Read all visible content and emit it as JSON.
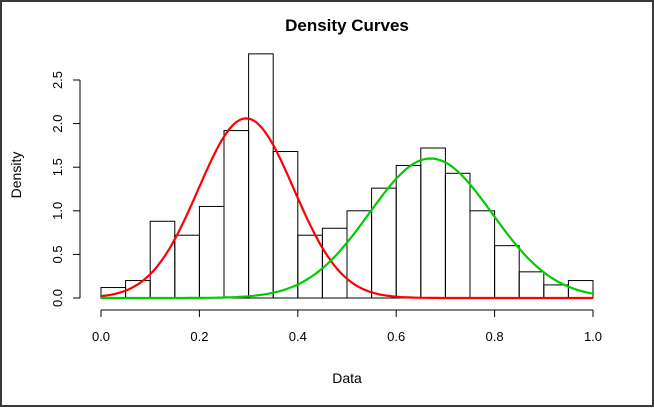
{
  "chart_data": {
    "type": "bar",
    "title": "Density Curves",
    "xlabel": "Data",
    "ylabel": "Density",
    "xlim": [
      0.0,
      1.0
    ],
    "ylim": [
      0.0,
      2.8
    ],
    "x_ticks": [
      "0.0",
      "0.2",
      "0.4",
      "0.6",
      "0.8",
      "1.0"
    ],
    "y_ticks": [
      "0.0",
      "0.5",
      "1.0",
      "1.5",
      "2.0",
      "2.5"
    ],
    "grid": false,
    "histogram": {
      "bin_width": 0.05,
      "bin_starts": [
        0.0,
        0.05,
        0.1,
        0.15,
        0.2,
        0.25,
        0.3,
        0.35,
        0.4,
        0.45,
        0.5,
        0.55,
        0.6,
        0.65,
        0.7,
        0.75,
        0.8,
        0.85,
        0.9,
        0.95
      ],
      "values": [
        0.12,
        0.2,
        0.88,
        0.72,
        1.05,
        1.92,
        2.8,
        1.68,
        0.72,
        0.8,
        1.0,
        1.26,
        1.52,
        1.72,
        1.43,
        1.0,
        0.6,
        0.3,
        0.15,
        0.2
      ]
    },
    "series": [
      {
        "type": "density",
        "color": "#ff0000",
        "mean": 0.295,
        "sd": 0.097,
        "x_range": [
          0.0,
          1.0
        ],
        "peak": 2.06
      },
      {
        "type": "density",
        "color": "#00cc00",
        "mean": 0.67,
        "sd": 0.125,
        "x_range": [
          0.0,
          1.0
        ],
        "peak": 1.6
      }
    ]
  }
}
